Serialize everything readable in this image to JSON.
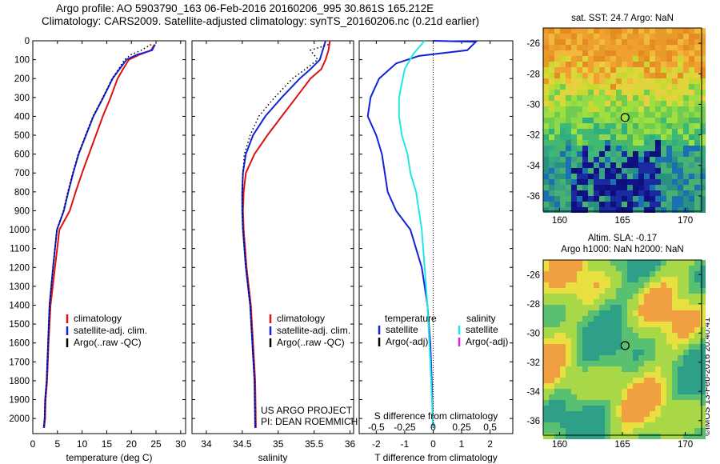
{
  "header": {
    "line1": "Argo profile: AO 5903790_163 06-Feb-2016 20160206_995 30.861S 165.212E",
    "line2": "Climatology: CARS2009. Satellite-adjusted climatology: synTS_20160206.nc (0.21d earlier)"
  },
  "watermark": "©IMOS 13-Feb-2016 20:40:41",
  "colors": {
    "climatology": "#dd1111",
    "satellite": "#1122dd",
    "argo": "#000000",
    "sat_salinity": "#22e6e6",
    "argo_adj_salinity": "#dd22dd"
  },
  "chart_data": [
    {
      "type": "line",
      "panel": "temperature",
      "xlabel": "temperature (deg C)",
      "ylabel": "",
      "xlim": [
        0,
        31
      ],
      "ylim": [
        2080,
        0
      ],
      "y_reversed": true,
      "xticks": [
        0,
        5,
        10,
        15,
        20,
        25,
        30
      ],
      "yticks": [
        0,
        100,
        200,
        300,
        400,
        500,
        600,
        700,
        800,
        900,
        1000,
        1100,
        1200,
        1300,
        1400,
        1500,
        1600,
        1700,
        1800,
        1900,
        2000
      ],
      "legend": [
        "climatology",
        "satellite-adj. clim.",
        "Argo(..raw -QC)"
      ],
      "series": [
        {
          "name": "climatology",
          "style": "solid",
          "color": "#dd1111",
          "x": [
            24.7,
            24.0,
            21.5,
            19.5,
            18.3,
            17.2,
            15.8,
            14.2,
            12.8,
            11.4,
            10.0,
            8.7,
            7.5,
            5.4,
            4.5,
            3.6,
            3.2,
            2.9,
            2.6,
            2.5,
            2.3
          ],
          "y": [
            20,
            50,
            75,
            100,
            150,
            200,
            300,
            400,
            500,
            600,
            700,
            800,
            900,
            1000,
            1200,
            1400,
            1600,
            1800,
            1900,
            2000,
            2050
          ]
        },
        {
          "name": "satellite-adj. clim.",
          "style": "solid",
          "color": "#1122dd",
          "x": [
            24.8,
            24.2,
            21.0,
            19.0,
            17.6,
            16.2,
            14.3,
            12.3,
            10.8,
            9.3,
            8.2,
            7.2,
            6.3,
            4.9,
            4.1,
            3.4,
            3.1,
            2.8,
            2.5,
            2.4,
            2.2
          ],
          "y": [
            20,
            50,
            75,
            100,
            150,
            200,
            300,
            400,
            500,
            600,
            700,
            800,
            900,
            1000,
            1200,
            1400,
            1600,
            1800,
            1900,
            2000,
            2050
          ]
        },
        {
          "name": "Argo(..raw -QC)",
          "style": "dotted",
          "color": "#000000",
          "x": [
            24.0,
            22.0,
            19.8,
            18.6,
            17.4,
            16.1,
            14.2,
            12.2,
            10.7,
            9.2,
            8.1,
            7.1,
            6.2,
            4.9,
            4.1,
            3.4,
            3.1,
            2.8,
            2.5,
            2.4,
            2.2
          ],
          "y": [
            20,
            50,
            75,
            100,
            150,
            200,
            300,
            400,
            500,
            600,
            700,
            800,
            900,
            1000,
            1200,
            1400,
            1600,
            1800,
            1900,
            2000,
            2050
          ]
        }
      ]
    },
    {
      "type": "line",
      "panel": "salinity",
      "xlabel": "salinity",
      "xlim": [
        33.8,
        36.05
      ],
      "ylim": [
        2080,
        0
      ],
      "y_reversed": true,
      "xticks": [
        34,
        34.5,
        35,
        35.5,
        36
      ],
      "legend": [
        "climatology",
        "satellite-adj. clim.",
        "Argo(..raw -QC)"
      ],
      "annotation": [
        "US ARGO PROJECT",
        "PI: DEAN ROEMMICH"
      ],
      "series": [
        {
          "name": "climatology",
          "style": "solid",
          "color": "#dd1111",
          "x": [
            35.72,
            35.7,
            35.66,
            35.6,
            35.45,
            35.25,
            35.05,
            34.85,
            34.67,
            34.55,
            34.52,
            34.51,
            34.52,
            34.56,
            34.62,
            34.65,
            34.68,
            34.69
          ],
          "y": [
            0,
            50,
            100,
            150,
            200,
            300,
            400,
            500,
            600,
            700,
            800,
            900,
            1000,
            1200,
            1400,
            1600,
            1800,
            2050
          ]
        },
        {
          "name": "satellite-adj. clim.",
          "style": "solid",
          "color": "#1122dd",
          "x": [
            35.66,
            35.62,
            35.58,
            35.45,
            35.3,
            35.05,
            34.82,
            34.65,
            34.55,
            34.51,
            34.5,
            34.5,
            34.51,
            34.55,
            34.61,
            34.64,
            34.67,
            34.68
          ],
          "y": [
            0,
            50,
            100,
            150,
            200,
            300,
            400,
            500,
            600,
            700,
            800,
            900,
            1000,
            1200,
            1400,
            1600,
            1800,
            2050
          ]
        },
        {
          "name": "Argo(..raw -QC)",
          "style": "dotted",
          "color": "#000000",
          "x": [
            35.7,
            35.45,
            35.55,
            35.38,
            35.2,
            34.95,
            34.73,
            34.61,
            34.53,
            34.51,
            34.5,
            34.5,
            34.51,
            34.55,
            34.61,
            34.64,
            34.67,
            34.68
          ],
          "y": [
            20,
            50,
            100,
            150,
            200,
            300,
            400,
            500,
            600,
            700,
            800,
            900,
            1000,
            1200,
            1400,
            1600,
            1800,
            2050
          ]
        }
      ]
    },
    {
      "type": "line",
      "panel": "difference",
      "xlabel": "T difference from climatology",
      "top_axis_label": "S difference from climatology",
      "xlim": [
        -2.6,
        2.8
      ],
      "ylim": [
        2080,
        0
      ],
      "y_reversed": true,
      "xticks": [
        -2,
        -1,
        0,
        1,
        2
      ],
      "top_ticks": [
        {
          "pos": -2,
          "label": "-0.5"
        },
        {
          "pos": -1,
          "label": "-0.25"
        },
        {
          "pos": 0,
          "label": "0"
        },
        {
          "pos": 1,
          "label": "0.25"
        },
        {
          "pos": 2,
          "label": "0.5"
        }
      ],
      "legend_left_title": "temperature",
      "legend_right_title": "salinity",
      "legend": [
        "satellite",
        "Argo(-adj)",
        "satellite",
        "Argo(-adj)"
      ],
      "series": [
        {
          "name": "temperature satellite",
          "style": "solid",
          "color": "#1122dd",
          "x": [
            0,
            1.5,
            1.2,
            -0.5,
            -1.3,
            -1.9,
            -2.2,
            -2.3,
            -2.0,
            -1.8,
            -1.7,
            -1.6,
            -1.3,
            -0.8,
            -0.6,
            -0.4,
            -0.3,
            -0.2,
            -0.1,
            -0.05,
            -0.02,
            0
          ],
          "y": [
            0,
            5,
            50,
            80,
            120,
            200,
            300,
            400,
            500,
            600,
            700,
            800,
            900,
            1000,
            1100,
            1200,
            1300,
            1400,
            1600,
            1800,
            1950,
            2050
          ]
        },
        {
          "name": "salinity satellite",
          "style": "solid",
          "color": "#22e6e6",
          "x": [
            -0.3,
            -0.7,
            -1.0,
            -1.2,
            -1.2,
            -1.1,
            -0.9,
            -0.8,
            -0.6,
            -0.5,
            -0.4,
            -0.3,
            -0.2,
            -0.1,
            0
          ],
          "y": [
            0,
            70,
            150,
            300,
            400,
            500,
            600,
            700,
            800,
            900,
            1000,
            1200,
            1400,
            1700,
            2050
          ]
        }
      ]
    },
    {
      "type": "heatmap",
      "panel": "sst_map",
      "title": "sat. SST: 24.7 Argo: NaN",
      "xlim": [
        158.7,
        171.3
      ],
      "ylim": [
        -37,
        -25
      ],
      "xticks": [
        160,
        165,
        170
      ],
      "yticks": [
        -26,
        -28,
        -30,
        -32,
        -34,
        -36
      ],
      "marker": {
        "lon": 165.212,
        "lat": -30.861
      }
    },
    {
      "type": "heatmap",
      "panel": "sla_map",
      "title_line1": "Altim. SLA: -0.17",
      "title_line2": "Argo h1000: NaN h2000: NaN",
      "xlim": [
        158.7,
        171.3
      ],
      "ylim": [
        -37,
        -25
      ],
      "xticks": [
        160,
        165,
        170
      ],
      "yticks": [
        -26,
        -28,
        -30,
        -32,
        -34,
        -36
      ],
      "marker": {
        "lon": 165.212,
        "lat": -30.861
      }
    }
  ]
}
